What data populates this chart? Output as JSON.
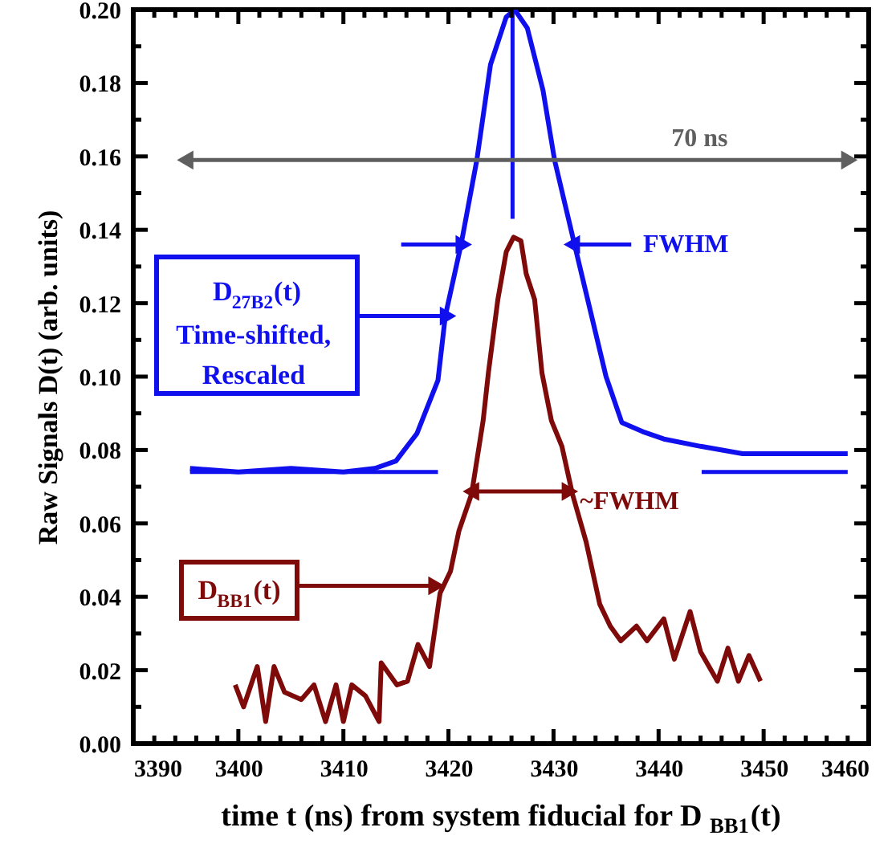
{
  "chart_data": {
    "type": "line",
    "xlabel": "time t (ns) from system fiducial for D$_{BB1}$(t)",
    "ylabel": "Raw Signals D(t) (arb. units)",
    "xlim": [
      3390,
      3460
    ],
    "ylim": [
      0,
      0.2
    ],
    "xticks": [
      3390,
      {
        "value": 3392,
        "label": null
      },
      {
        "value": 3394,
        "label": null
      },
      {
        "value": 3396,
        "label": null
      },
      {
        "value": 3398,
        "label": null
      },
      3400,
      {
        "value": 3402,
        "label": null
      },
      {
        "value": 3404,
        "label": null
      },
      {
        "value": 3406,
        "label": null
      },
      {
        "value": 3408,
        "label": null
      },
      3410,
      {
        "value": 3412,
        "label": null
      },
      {
        "value": 3414,
        "label": null
      },
      {
        "value": 3416,
        "label": null
      },
      {
        "value": 3418,
        "label": null
      },
      3420,
      {
        "value": 3422,
        "label": null
      },
      {
        "value": 3424,
        "label": null
      },
      {
        "value": 3426,
        "label": null
      },
      {
        "value": 3428,
        "label": null
      },
      3430,
      {
        "value": 3432,
        "label": null
      },
      {
        "value": 3434,
        "label": null
      },
      {
        "value": 3436,
        "label": null
      },
      {
        "value": 3438,
        "label": null
      },
      3440,
      {
        "value": 3442,
        "label": null
      },
      {
        "value": 3444,
        "label": null
      },
      {
        "value": 3446,
        "label": null
      },
      {
        "value": 3448,
        "label": null
      },
      3450,
      {
        "value": 3452,
        "label": null
      },
      {
        "value": 3454,
        "label": null
      },
      {
        "value": 3456,
        "label": null
      },
      {
        "value": 3458,
        "label": null
      },
      3460
    ],
    "yticks": [
      {
        "value": 0,
        "label": "0.00"
      },
      {
        "value": 0.01,
        "label": null
      },
      {
        "value": 0.02,
        "label": "0.02"
      },
      {
        "value": 0.03,
        "label": null
      },
      {
        "value": 0.04,
        "label": "0.04"
      },
      {
        "value": 0.05,
        "label": null
      },
      {
        "value": 0.06,
        "label": "0.06"
      },
      {
        "value": 0.07,
        "label": null
      },
      {
        "value": 0.08,
        "label": "0.08"
      },
      {
        "value": 0.09,
        "label": null
      },
      {
        "value": 0.1,
        "label": "0.10"
      },
      {
        "value": 0.11,
        "label": null
      },
      {
        "value": 0.12,
        "label": "0.12"
      },
      {
        "value": 0.13,
        "label": null
      },
      {
        "value": 0.14,
        "label": "0.14"
      },
      {
        "value": 0.15,
        "label": null
      },
      {
        "value": 0.16,
        "label": "0.16"
      },
      {
        "value": 0.17,
        "label": null
      },
      {
        "value": 0.18,
        "label": "0.18"
      },
      {
        "value": 0.19,
        "label": null
      },
      {
        "value": 0.2,
        "label": "0.20"
      }
    ],
    "series": [
      {
        "name": "D$_{27B2}$(t)\nTime-shifted,\nRescaled",
        "color": "#1010ee",
        "x": [
          3395.4,
          3400,
          3405,
          3410,
          3413,
          3415,
          3417,
          3419,
          3419.7,
          3421.2,
          3422.7,
          3424,
          3425.5,
          3426.3,
          3427.5,
          3429,
          3430.1,
          3432,
          3433.5,
          3435,
          3436.5,
          3438.5,
          3440.5,
          3444,
          3448,
          3453,
          3458
        ],
        "values": [
          0.075,
          0.074,
          0.075,
          0.074,
          0.075,
          0.077,
          0.0845,
          0.099,
          0.1165,
          0.136,
          0.159,
          0.185,
          0.198,
          0.2,
          0.195,
          0.178,
          0.159,
          0.136,
          0.118,
          0.1,
          0.0875,
          0.085,
          0.083,
          0.081,
          0.079,
          0.079,
          0.079
        ]
      },
      {
        "name": "D$_{BB1}$(t)",
        "color": "#7f0a0a",
        "x": [
          3399.7,
          3400.5,
          3401.8,
          3402.6,
          3403.4,
          3404.4,
          3406,
          3407.2,
          3408.3,
          3409.3,
          3410,
          3410.8,
          3412.1,
          3413.4,
          3413.6,
          3415.1,
          3416.1,
          3417.1,
          3418.2,
          3419.2,
          3420.2,
          3421,
          3422.2,
          3423.3,
          3423.8,
          3424.7,
          3425.5,
          3426.2,
          3426.9,
          3427.4,
          3428.2,
          3428.9,
          3429.8,
          3430.8,
          3431.8,
          3433.1,
          3434.4,
          3435.4,
          3436.4,
          3437.9,
          3438.9,
          3440.5,
          3441.5,
          3443,
          3444,
          3445.6,
          3446.6,
          3447.6,
          3448.6,
          3449.7
        ],
        "values": [
          0.016,
          0.01,
          0.021,
          0.006,
          0.021,
          0.014,
          0.012,
          0.016,
          0.006,
          0.016,
          0.006,
          0.016,
          0.013,
          0.006,
          0.022,
          0.016,
          0.017,
          0.027,
          0.021,
          0.041,
          0.047,
          0.058,
          0.068,
          0.088,
          0.101,
          0.121,
          0.134,
          0.138,
          0.137,
          0.128,
          0.121,
          0.101,
          0.088,
          0.081,
          0.068,
          0.055,
          0.038,
          0.032,
          0.028,
          0.032,
          0.028,
          0.034,
          0.023,
          0.036,
          0.025,
          0.017,
          0.026,
          0.017,
          0.024,
          0.017
        ]
      },
      {
        "color": "#1010ee",
        "x": [
          3395.4,
          3401,
          3407,
          3413,
          3419
        ],
        "values": [
          0.074,
          0.074,
          0.074,
          0.074,
          0.074
        ]
      },
      {
        "color": "#1010ee",
        "x": [
          3444.1,
          3447.6,
          3451,
          3454.5,
          3458
        ],
        "values": [
          0.074,
          0.074,
          0.074,
          0.074,
          0.074
        ]
      },
      {
        "color": "#1010ee",
        "x": [
          3426.1,
          3426.1
        ],
        "values": [
          0.2,
          0.143
        ]
      },
      {
        "color": "#5f5f5f",
        "x": [
          3395.2,
          3426,
          3457.9
        ],
        "values": [
          0.159,
          0.159,
          0.159
        ]
      },
      {
        "color": "#7f0a0a",
        "x": [
          3422.4,
          3427,
          3431.3
        ],
        "values": [
          0.0687,
          0.0687,
          0.0687
        ]
      },
      {
        "color": "#1010ee",
        "x": [
          3415.5,
          3421.2
        ],
        "values": [
          0.136,
          0.136
        ]
      },
      {
        "color": "#1010ee",
        "x": [
          3437.4,
          3432
        ],
        "values": [
          0.136,
          0.136
        ]
      },
      {
        "color": "#1010ee",
        "x": [
          3411.4,
          3419.7
        ],
        "values": [
          0.1165,
          0.1165
        ]
      },
      {
        "color": "#7f0a0a",
        "x": [
          3405.6,
          3418.6
        ],
        "values": [
          0.043,
          0.043
        ]
      }
    ],
    "annotations": [
      "70 ns",
      {
        "text": "FWHM",
        "x": 3437.6,
        "y": 0.136
      },
      {
        "text": "~FWHM",
        "x": 3431.6,
        "y": 0.066
      }
    ]
  }
}
